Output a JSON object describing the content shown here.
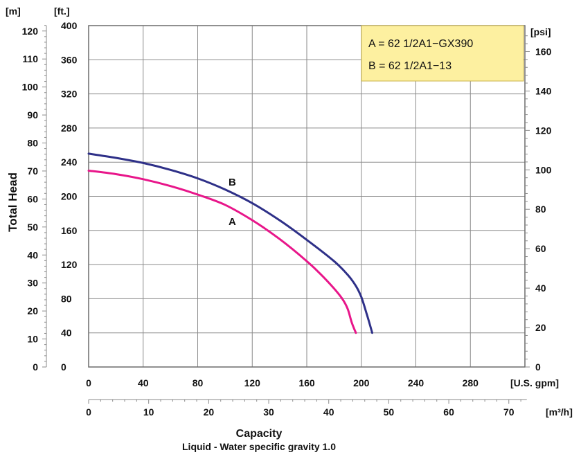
{
  "chart_data": {
    "type": "line",
    "xlabel": "Capacity",
    "note": "Liquid - Water specific gravity 1.0",
    "ylabel": "Total Head",
    "x_gpm": {
      "unit": "[U.S. gpm]",
      "range": [
        0,
        320
      ],
      "ticks": [
        "0",
        "40",
        "80",
        "120",
        "160",
        "200",
        "240",
        "280"
      ]
    },
    "x_m3h": {
      "unit": "[m³/h]",
      "range": [
        0,
        73
      ],
      "ticks": [
        "0",
        "10",
        "20",
        "30",
        "40",
        "50",
        "60",
        "70"
      ]
    },
    "y_ft": {
      "unit": "[ft.]",
      "range": [
        0,
        400
      ],
      "ticks": [
        "0",
        "40",
        "80",
        "120",
        "160",
        "200",
        "240",
        "280",
        "320",
        "360",
        "400"
      ]
    },
    "y_m": {
      "unit": "[m]",
      "ticks": [
        "0",
        "10",
        "20",
        "30",
        "40",
        "50",
        "60",
        "70",
        "80",
        "90",
        "100",
        "110",
        "120"
      ]
    },
    "y_psi": {
      "unit": "[psi]",
      "ticks": [
        "0",
        "20",
        "40",
        "60",
        "80",
        "100",
        "120",
        "140",
        "160"
      ]
    },
    "legend": {
      "lines": [
        "A = 62 1/2A1−GX390",
        "B = 62 1/2A1−13"
      ],
      "bg": "#fdf0a0",
      "border": "#c8b24a"
    },
    "series": [
      {
        "name": "A",
        "color": "#e8168a",
        "x": [
          0,
          20,
          40,
          60,
          80,
          100,
          120,
          140,
          160,
          170,
          180,
          186,
          190,
          193,
          196
        ],
        "y": [
          230,
          226,
          220,
          212,
          202,
          190,
          172,
          150,
          124,
          109,
          92,
          80,
          68,
          52,
          40
        ]
      },
      {
        "name": "B",
        "color": "#2e3088",
        "x": [
          0,
          20,
          40,
          60,
          80,
          100,
          120,
          140,
          160,
          180,
          190,
          196,
          200,
          204,
          208
        ],
        "y": [
          250,
          245,
          239,
          231,
          221,
          208,
          192,
          172,
          149,
          124,
          108,
          95,
          82,
          62,
          40
        ]
      }
    ]
  }
}
